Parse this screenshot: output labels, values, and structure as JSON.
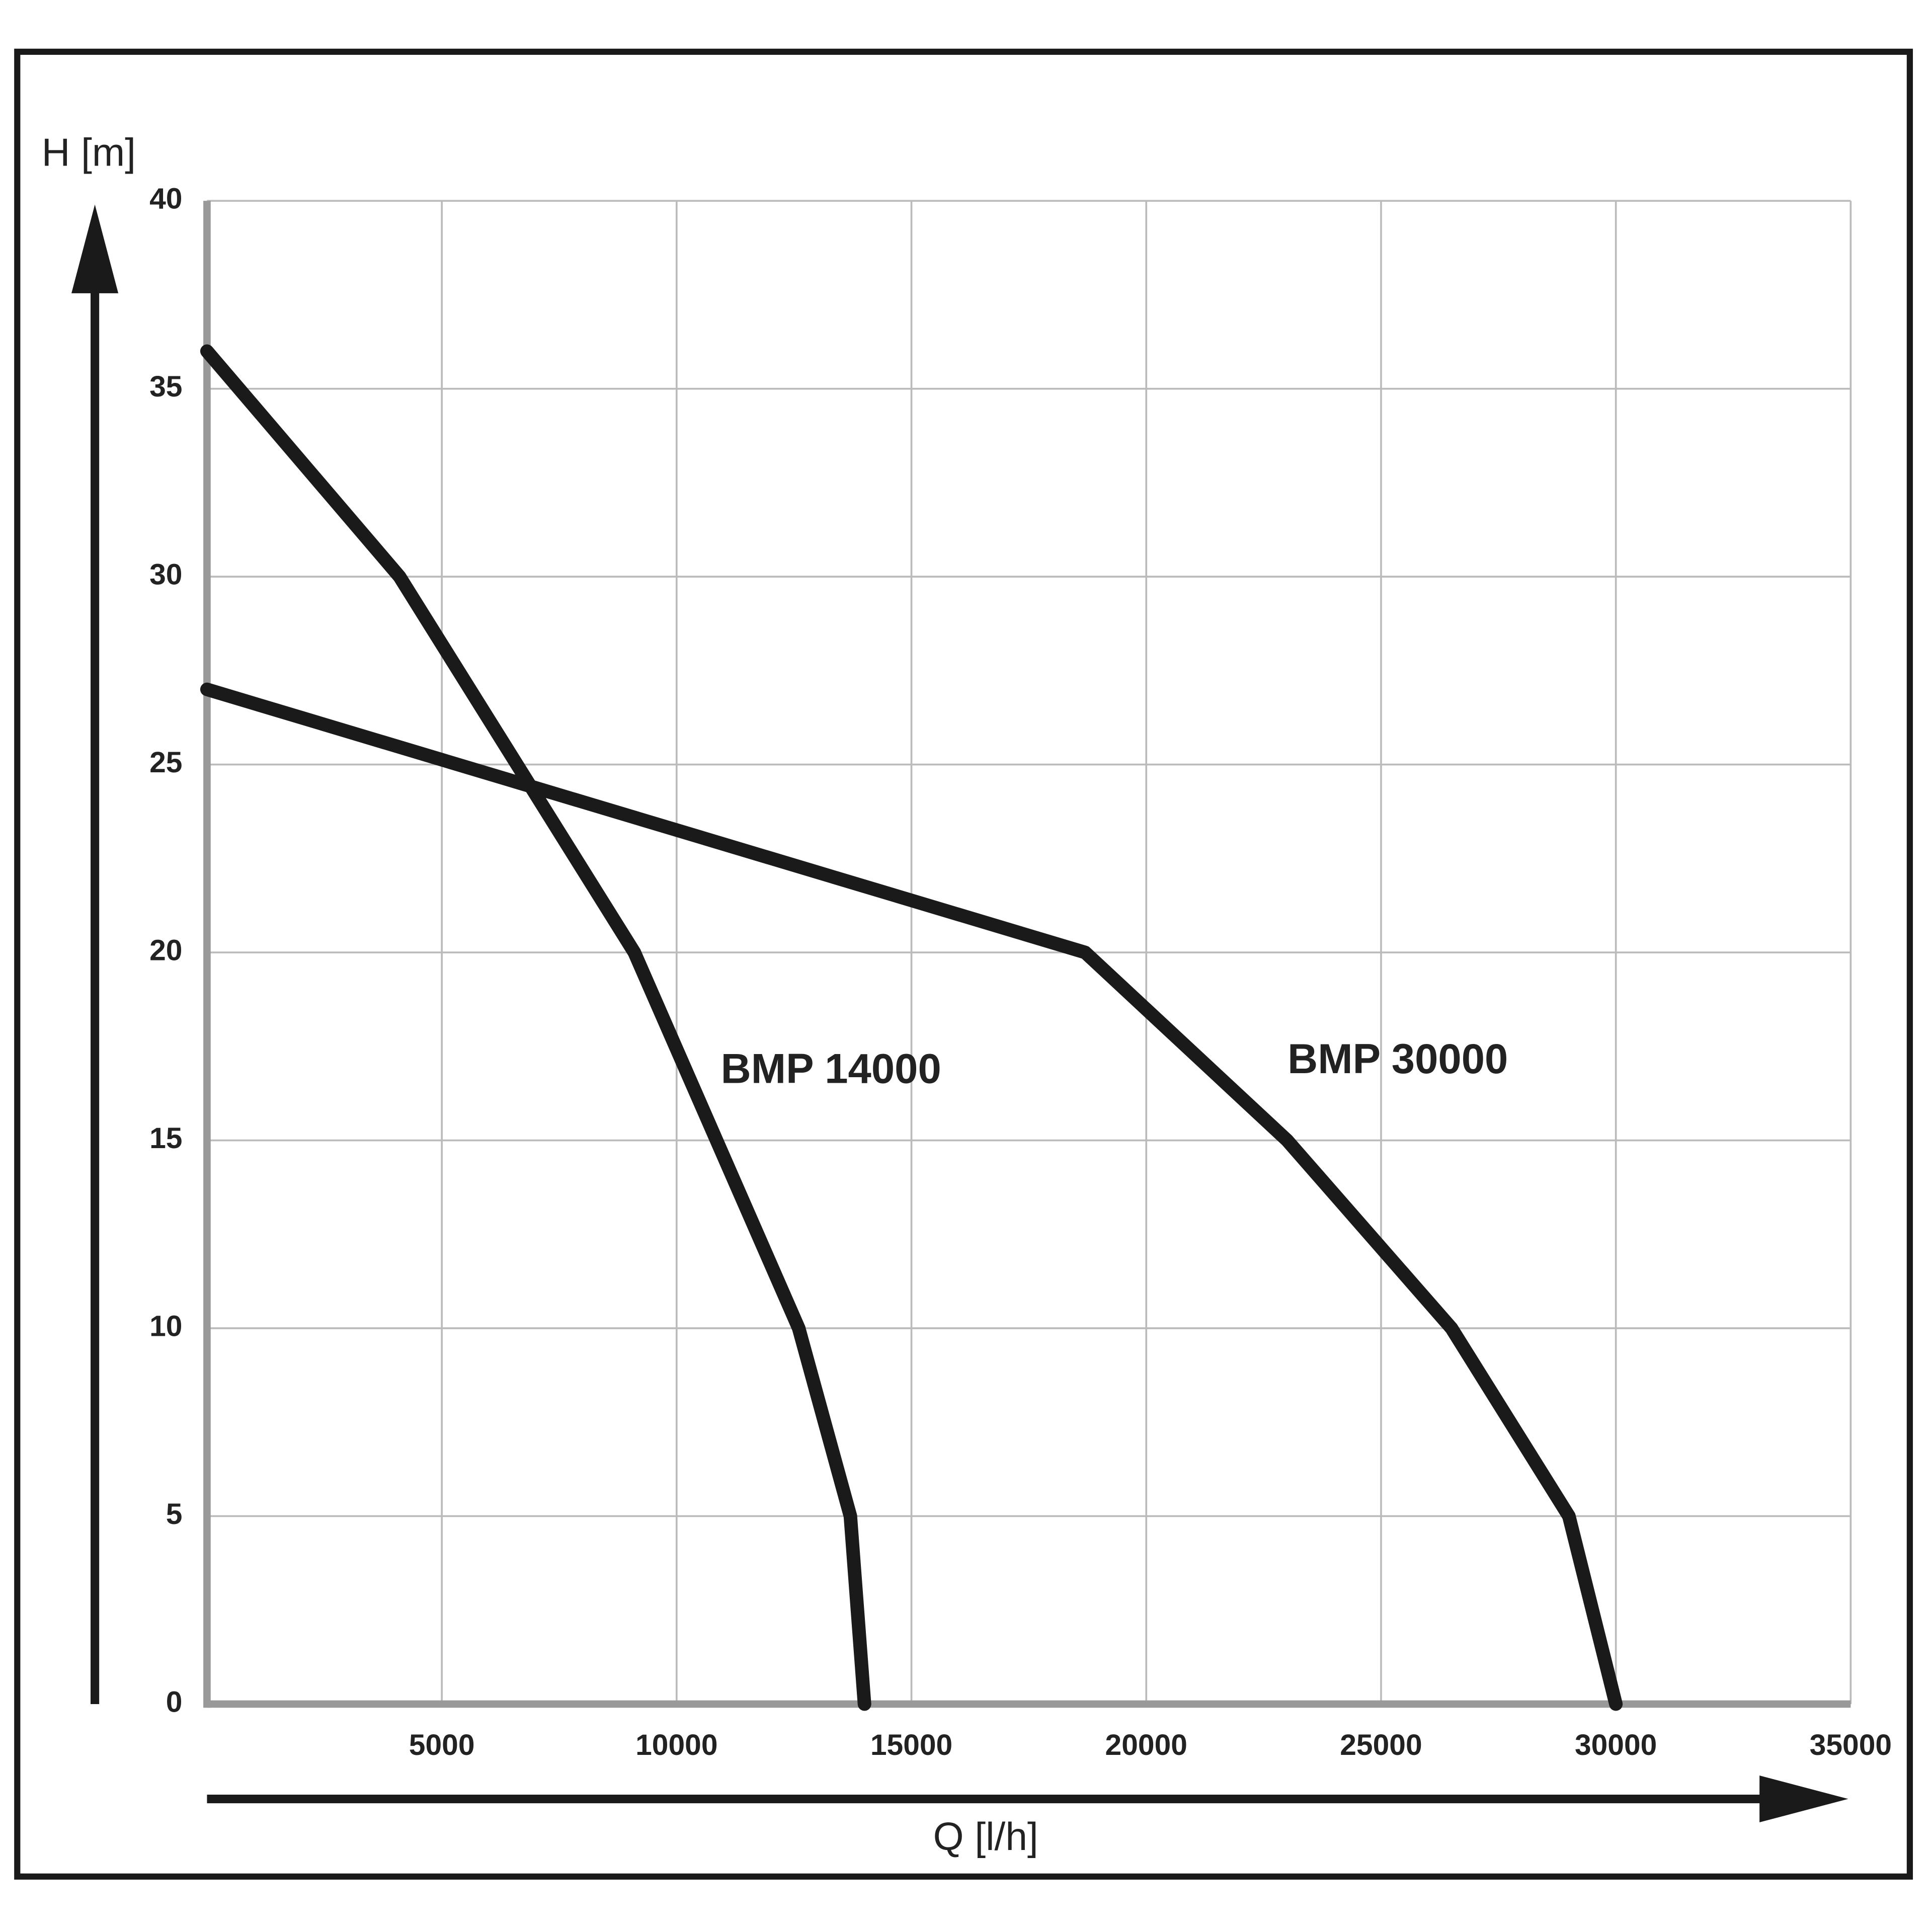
{
  "chart_data": {
    "type": "line",
    "y_label": "H [m]",
    "x_label": "Q [l/h]",
    "xlim": [
      0,
      35000
    ],
    "xticks": [
      5000,
      10000,
      15000,
      20000,
      25000,
      30000,
      35000
    ],
    "ylim": [
      0,
      40
    ],
    "yticks": [
      0,
      5,
      10,
      15,
      20,
      25,
      30,
      35,
      40
    ],
    "grid": true,
    "series": [
      {
        "name": "BMP 14000",
        "color": "#1a1a1a",
        "x": [
          0,
          4100,
          9100,
          12600,
          13700,
          14000
        ],
        "values": [
          36,
          30,
          20,
          10,
          5,
          0
        ]
      },
      {
        "name": "BMP 30000",
        "color": "#1a1a1a",
        "x": [
          0,
          18700,
          23000,
          26500,
          29000,
          30000
        ],
        "values": [
          27,
          20,
          15,
          10,
          5,
          0
        ]
      }
    ]
  }
}
